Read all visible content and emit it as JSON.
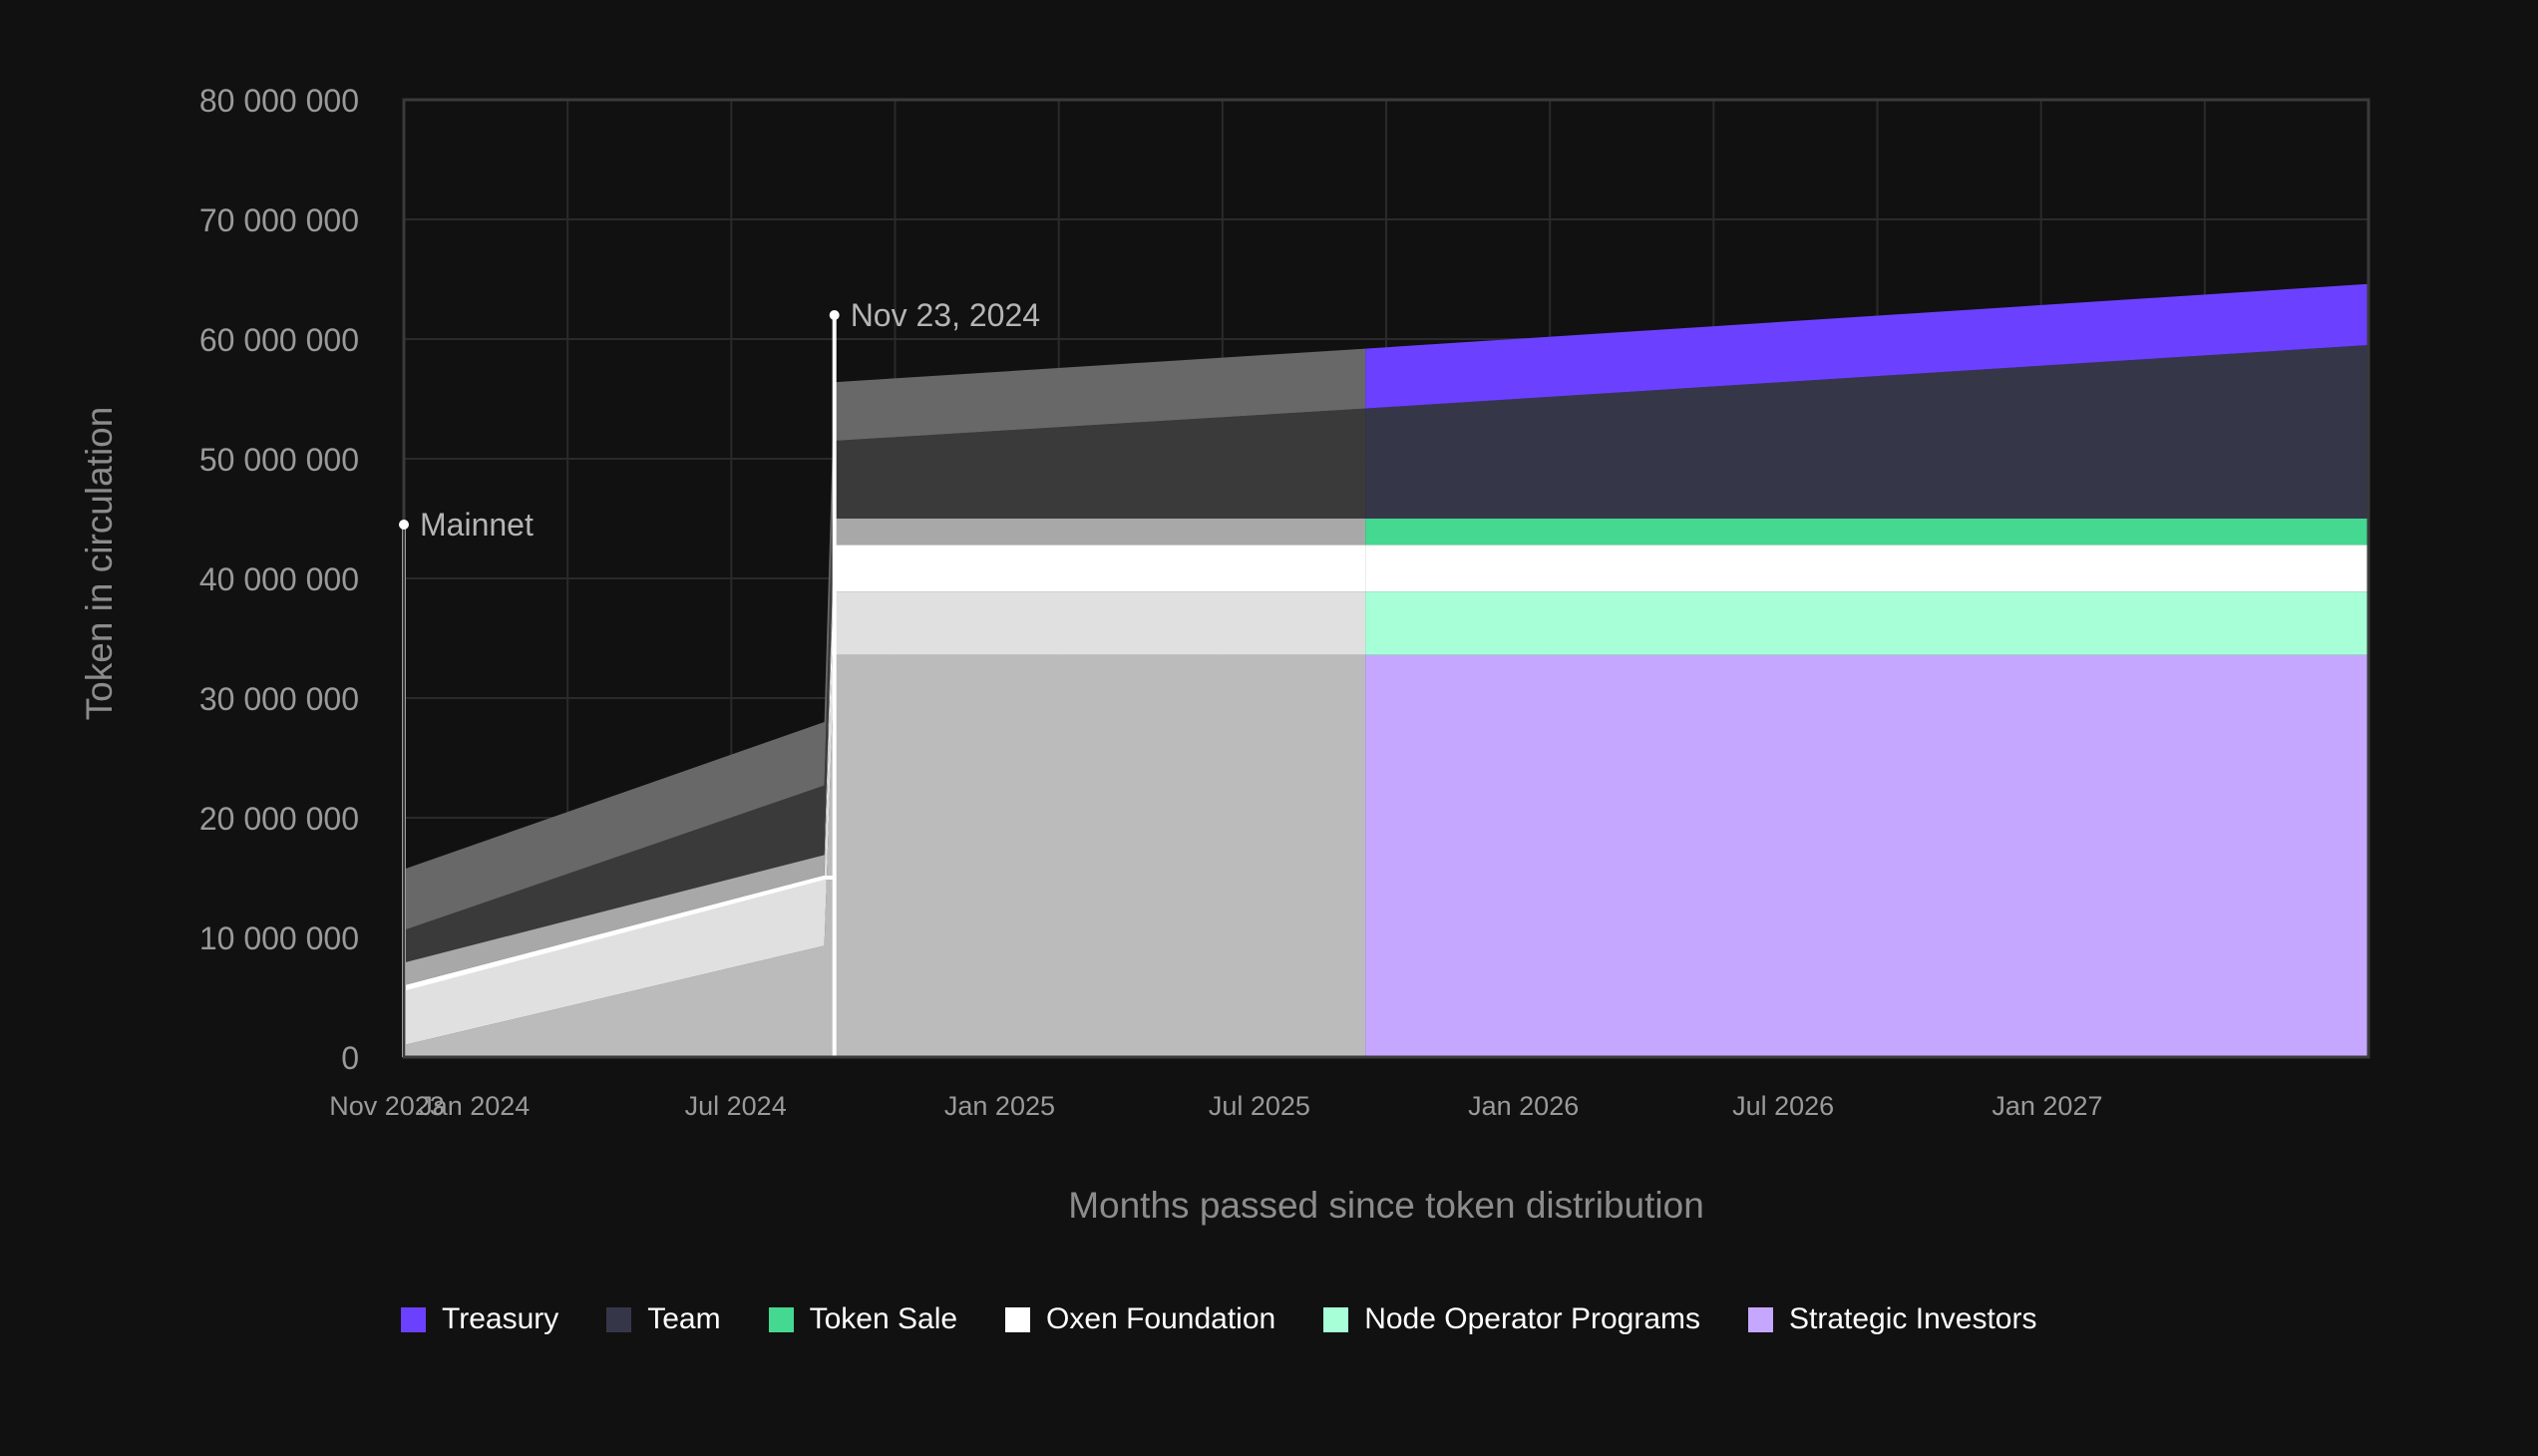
{
  "chart_data": {
    "type": "area",
    "stacked": true,
    "title": "",
    "xlabel": "Months passed since token distribution",
    "ylabel": "Token in circulation",
    "ylim": [
      0,
      80000000
    ],
    "y_ticks": [
      0,
      10000000,
      20000000,
      30000000,
      40000000,
      50000000,
      60000000,
      70000000,
      80000000
    ],
    "y_tick_labels": [
      "0",
      "10 000 000",
      "20 000 000",
      "30 000 000",
      "40 000 000",
      "50 000 000",
      "60 000 000",
      "70 000 000",
      "80 000 000"
    ],
    "x_ticks": [
      "2023-11-01",
      "2024-01-01",
      "2024-07-01",
      "2025-01-01",
      "2025-07-01",
      "2026-01-01",
      "2026-07-01",
      "2027-01-01"
    ],
    "x_tick_labels": [
      "Nov 2023",
      "Jan 2024",
      "Jul 2024",
      "Jan 2025",
      "Jul 2025",
      "Jan 2026",
      "Jul 2026",
      "Jan 2027"
    ],
    "x_range": [
      "2023-11-01",
      "2027-08-01"
    ],
    "grid": true,
    "legend_position": "bottom",
    "highlight_from": "2025-09-01",
    "series": [
      {
        "name": "Strategic Investors",
        "color": "#c6a7ff",
        "muted_color": "#bbbbbb",
        "points": [
          [
            "2023-11-01",
            1000000
          ],
          [
            "2024-08-20",
            9300000
          ],
          [
            "2024-08-27",
            33600000
          ],
          [
            "2027-08-01",
            33600000
          ]
        ]
      },
      {
        "name": "Node Operator Programs",
        "color": "#a7ffd8",
        "muted_color": "#e0e0e0",
        "points": [
          [
            "2023-11-01",
            4700000
          ],
          [
            "2024-08-20",
            5600000
          ],
          [
            "2024-08-27",
            5300000
          ],
          [
            "2027-08-01",
            5300000
          ]
        ]
      },
      {
        "name": "Oxen Foundation",
        "color": "#ffffff",
        "muted_color": "#ffffff",
        "points": [
          [
            "2023-11-01",
            300000
          ],
          [
            "2024-08-20",
            300000
          ],
          [
            "2024-08-27",
            3900000
          ],
          [
            "2027-08-01",
            3900000
          ]
        ]
      },
      {
        "name": "Token Sale",
        "color": "#44d891",
        "muted_color": "#a8a8a8",
        "points": [
          [
            "2023-11-01",
            1900000
          ],
          [
            "2024-08-20",
            1700000
          ],
          [
            "2024-08-27",
            2200000
          ],
          [
            "2027-08-01",
            2200000
          ]
        ]
      },
      {
        "name": "Team",
        "color": "#353749",
        "muted_color": "#3a3a3a",
        "points": [
          [
            "2023-11-01",
            2700000
          ],
          [
            "2024-08-20",
            5800000
          ],
          [
            "2024-08-27",
            6500000
          ],
          [
            "2025-09-01",
            9200000
          ],
          [
            "2027-08-01",
            14500000
          ]
        ]
      },
      {
        "name": "Treasury",
        "color": "#6c40ff",
        "muted_color": "#686868",
        "points": [
          [
            "2023-11-01",
            5100000
          ],
          [
            "2024-08-20",
            5300000
          ],
          [
            "2024-08-27",
            4900000
          ],
          [
            "2025-09-01",
            5000000
          ],
          [
            "2027-08-01",
            5100000
          ]
        ]
      }
    ],
    "annotations": [
      {
        "date": "2023-11-01",
        "value": 44500000,
        "label": "Mainnet"
      },
      {
        "date": "2024-08-27",
        "value": 62000000,
        "label": "Nov 23, 2024"
      }
    ],
    "circulation_line": [
      [
        "2023-11-01",
        5700000
      ],
      [
        "2024-08-20",
        15000000
      ],
      [
        "2024-08-27",
        15000000
      ]
    ]
  },
  "legend": [
    {
      "label": "Treasury",
      "color": "#6c40ff"
    },
    {
      "label": "Team",
      "color": "#353749"
    },
    {
      "label": "Token Sale",
      "color": "#44d891"
    },
    {
      "label": "Oxen Foundation",
      "color": "#ffffff"
    },
    {
      "label": "Node Operator Programs",
      "color": "#a7ffd8"
    },
    {
      "label": "Strategic Investors",
      "color": "#c6a7ff"
    }
  ]
}
